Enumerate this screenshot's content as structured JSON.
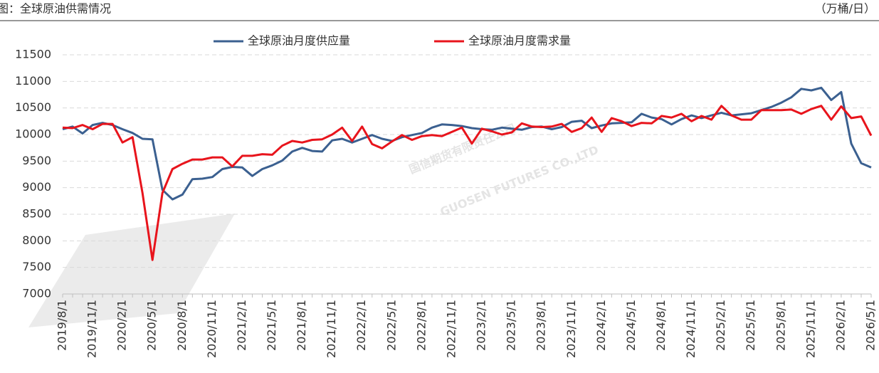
{
  "chart_data": {
    "type": "line",
    "title": "图：全球原油供需情况",
    "unit_label": "（万桶/日）",
    "watermark": [
      "国信期货有限责任公司",
      "GUOSEN FUTURES CO.,LTD"
    ],
    "categories": [
      "2019/8/1",
      null,
      null,
      "2019/11/1",
      null,
      null,
      "2020/2/1",
      null,
      null,
      "2020/5/1",
      null,
      null,
      "2020/8/1",
      null,
      null,
      "2020/11/1",
      null,
      null,
      "2021/2/1",
      null,
      null,
      "2021/5/1",
      null,
      null,
      "2021/8/1",
      null,
      null,
      "2021/11/1",
      null,
      null,
      "2022/2/1",
      null,
      null,
      "2022/5/1",
      null,
      null,
      "2022/8/1",
      null,
      null,
      "2022/11/1",
      null,
      null,
      "2023/2/1",
      null,
      null,
      "2023/5/1",
      null,
      null,
      "2023/8/1",
      null,
      null,
      "2023/11/1",
      null,
      null,
      "2024/2/1",
      null,
      null,
      "2024/5/1",
      null,
      null,
      "2024/8/1",
      null,
      null,
      "2024/11/1",
      null,
      null,
      "2025/2/1",
      null,
      null,
      "2025/5/1",
      null,
      null,
      "2025/8/1",
      null,
      null,
      "2025/11/1",
      null,
      null,
      "2026/2/1",
      null,
      null,
      "2026/5/1"
    ],
    "series": [
      {
        "name": "全球原油月度供应量",
        "color": "#3b6090",
        "values": [
          10100,
          10150,
          10020,
          10180,
          10220,
          10180,
          10100,
          10030,
          9920,
          9910,
          8960,
          8780,
          8870,
          9160,
          9170,
          9200,
          9350,
          9390,
          9380,
          9220,
          9350,
          9420,
          9510,
          9680,
          9750,
          9690,
          9680,
          9890,
          9920,
          9850,
          9920,
          9990,
          9920,
          9880,
          9950,
          9990,
          10030,
          10130,
          10190,
          10180,
          10160,
          10120,
          10100,
          10090,
          10130,
          10110,
          10090,
          10140,
          10150,
          10100,
          10140,
          10240,
          10260,
          10120,
          10170,
          10210,
          10220,
          10230,
          10390,
          10320,
          10290,
          10190,
          10290,
          10360,
          10310,
          10360,
          10410,
          10360,
          10380,
          10400,
          10460,
          10520,
          10600,
          10700,
          10860,
          10830,
          10880,
          10650,
          10800,
          9830,
          9460,
          9380
        ]
      },
      {
        "name": "全球原油月度需求量",
        "color": "#e8141c",
        "values": [
          10130,
          10120,
          10180,
          10100,
          10200,
          10200,
          9850,
          9950,
          8900,
          7640,
          8900,
          9350,
          9450,
          9530,
          9530,
          9570,
          9570,
          9400,
          9600,
          9600,
          9630,
          9620,
          9790,
          9880,
          9850,
          9900,
          9910,
          10000,
          10130,
          9880,
          10150,
          9820,
          9740,
          9870,
          9990,
          9900,
          9970,
          9990,
          9970,
          10050,
          10130,
          9830,
          10110,
          10060,
          10000,
          10040,
          10210,
          10150,
          10140,
          10150,
          10200,
          10050,
          10120,
          10320,
          10050,
          10310,
          10250,
          10160,
          10220,
          10210,
          10350,
          10320,
          10390,
          10250,
          10350,
          10280,
          10540,
          10360,
          10280,
          10280,
          10460,
          10460,
          10460,
          10470,
          10390,
          10480,
          10540,
          10280,
          10530,
          10310,
          10340,
          9980
        ]
      }
    ],
    "ylim": [
      7000,
      11500
    ],
    "yticks": [
      7000,
      7500,
      8000,
      8500,
      9000,
      9500,
      10000,
      10500,
      11000,
      11500
    ],
    "grid": true,
    "legend": "top"
  }
}
